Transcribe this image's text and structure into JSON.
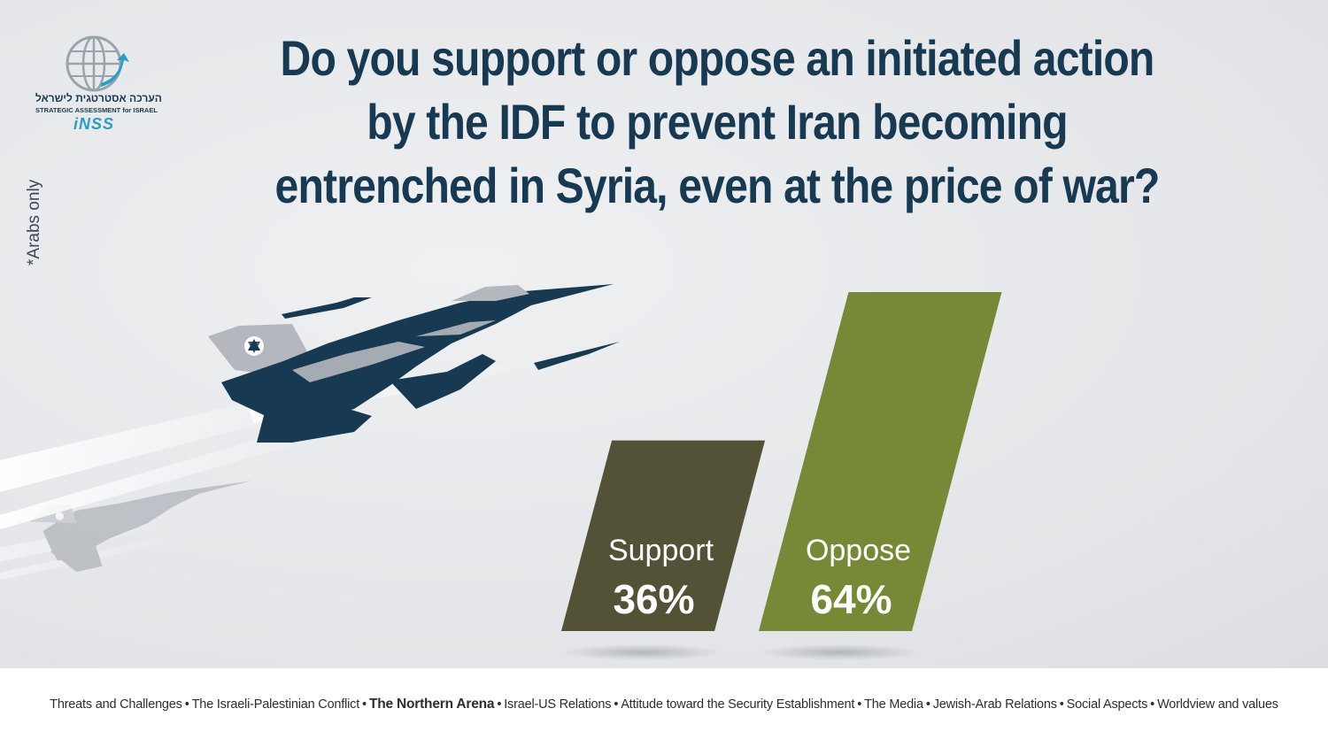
{
  "title": "Do you support or oppose an initiated action by the IDF to prevent Iran becoming entrenched in Syria, even at the price of war?",
  "side_note": "*Arabs only",
  "logo": {
    "hebrew": "הערכה אסטרטגית לישראל",
    "english": "STRATEGIC ASSESSMENT for ISRAEL",
    "acronym": "iNSS",
    "icon": "globe-icon"
  },
  "colors": {
    "title": "#173a52",
    "support_bar": "#545236",
    "oppose_bar": "#768937",
    "jet_dark": "#173a52",
    "jet_light": "#b4b8be"
  },
  "chart_data": {
    "type": "bar",
    "categories": [
      "Support",
      "Oppose"
    ],
    "values": [
      36,
      64
    ],
    "value_labels": [
      "36%",
      "64%"
    ],
    "ylim": [
      0,
      64
    ],
    "grid": false,
    "legend": "none"
  },
  "illustration": {
    "foreground": "fighter-jet-icon",
    "background": "fighter-jet-icon"
  },
  "footer": {
    "topics": [
      "Threats and Challenges",
      "The Israeli-Palestinian Conflict",
      "The Northern  Arena",
      "Israel-US Relations",
      "Attitude toward the Security Establishment",
      "The Media",
      "Jewish-Arab Relations",
      "Social Aspects",
      "Worldview and values"
    ],
    "active_index": 2,
    "separator": "•"
  }
}
